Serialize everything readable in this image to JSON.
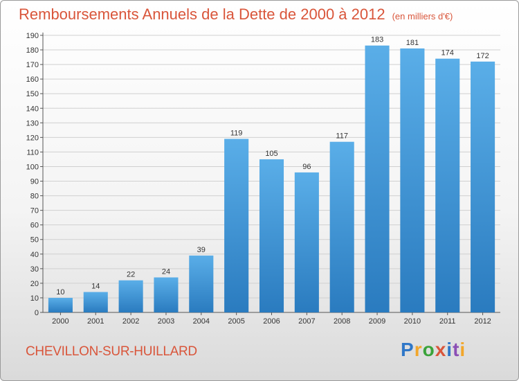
{
  "title": "Remboursements Annuels de la Dette de 2000 à 2012",
  "subtitle": "(en milliers d'€)",
  "commune": "CHEVILLON-SUR-HUILLARD",
  "logo": {
    "text": "Proxiti",
    "letter_colors": [
      "#2f77c8",
      "#f2a62a",
      "#3aa33a",
      "#d9553a",
      "#2f77c8",
      "#8b4fb5",
      "#f2a62a"
    ]
  },
  "colors": {
    "title": "#d9553a",
    "bar_top": "#5aaee8",
    "bar_bottom": "#2a7bbf",
    "grid": "#d0d0d0"
  },
  "chart_data": {
    "type": "bar",
    "title": "Remboursements Annuels de la Dette de 2000 à 2012",
    "subtitle": "(en milliers d'€)",
    "categories": [
      "2000",
      "2001",
      "2002",
      "2003",
      "2004",
      "2005",
      "2006",
      "2007",
      "2008",
      "2009",
      "2010",
      "2011",
      "2012"
    ],
    "values": [
      10,
      14,
      22,
      24,
      39,
      119,
      105,
      96,
      117,
      183,
      181,
      174,
      172
    ],
    "ylim": [
      0,
      190
    ],
    "yticks": [
      0,
      10,
      20,
      30,
      40,
      50,
      60,
      70,
      80,
      90,
      100,
      110,
      120,
      130,
      140,
      150,
      160,
      170,
      180,
      190
    ],
    "grid": true,
    "data_labels": true
  }
}
